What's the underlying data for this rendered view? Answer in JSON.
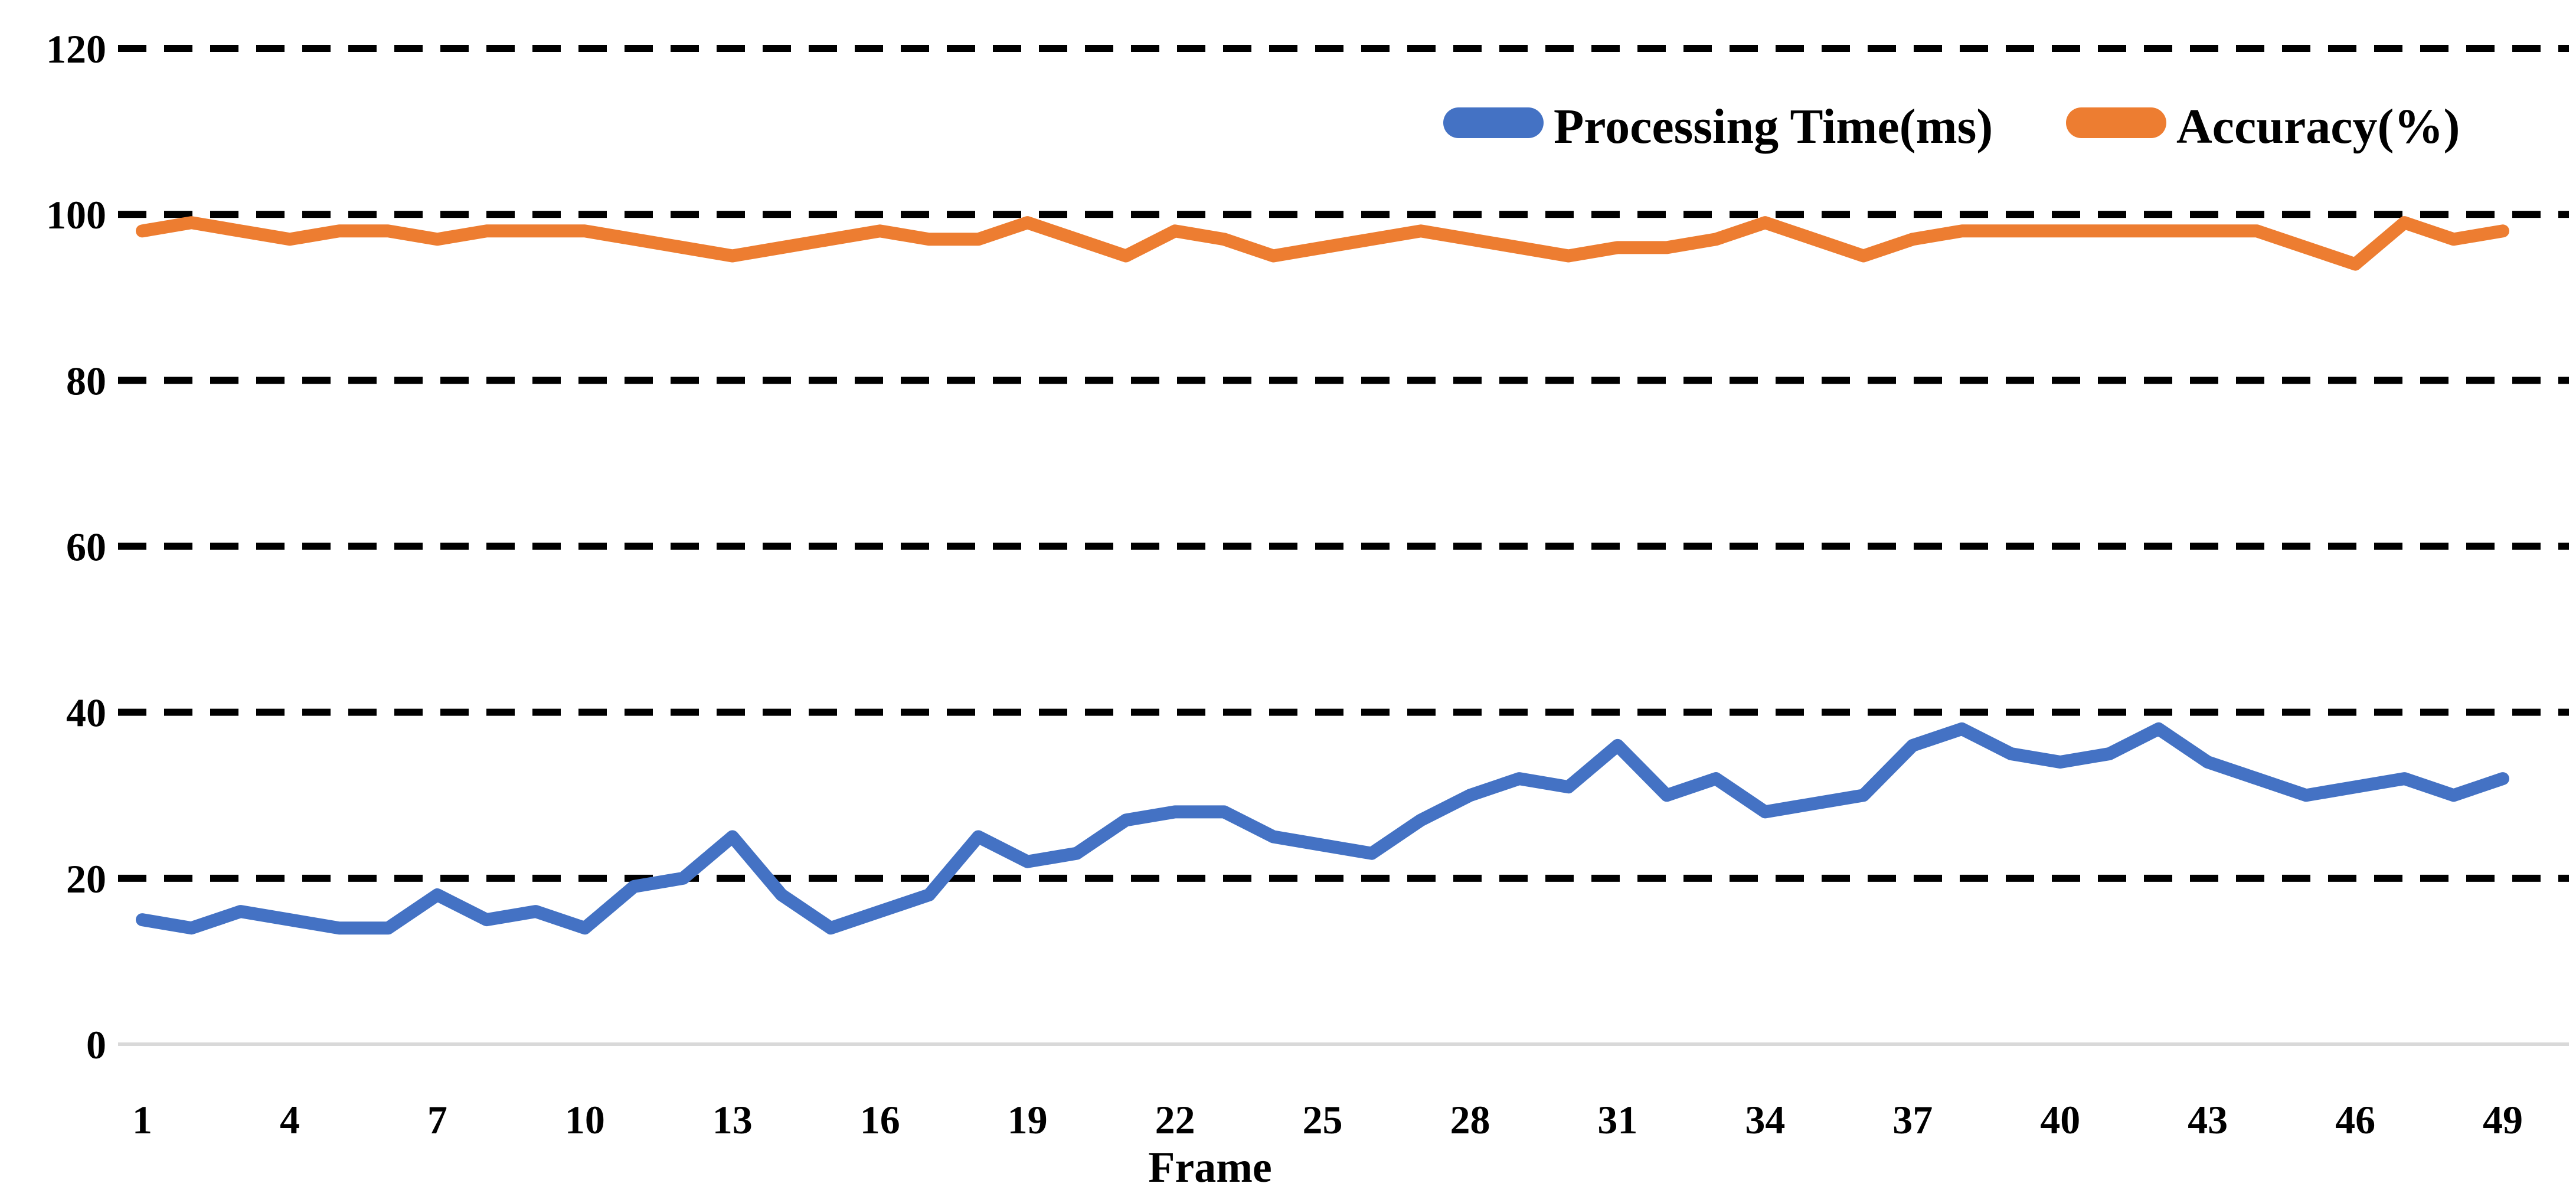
{
  "chart_data": {
    "type": "line",
    "title": "",
    "xlabel": "Frame",
    "ylabel": "",
    "x": [
      1,
      2,
      3,
      4,
      5,
      6,
      7,
      8,
      9,
      10,
      11,
      12,
      13,
      14,
      15,
      16,
      17,
      18,
      19,
      20,
      21,
      22,
      23,
      24,
      25,
      26,
      27,
      28,
      29,
      30,
      31,
      32,
      33,
      34,
      35,
      36,
      37,
      38,
      39,
      40,
      41,
      42,
      43,
      44,
      45,
      46,
      47,
      48,
      49
    ],
    "series": [
      {
        "name": "Processing Time(ms)",
        "color": "#4472C4",
        "values": [
          15,
          14,
          16,
          15,
          14,
          14,
          18,
          15,
          16,
          14,
          19,
          20,
          25,
          18,
          14,
          16,
          18,
          25,
          22,
          23,
          27,
          28,
          28,
          25,
          24,
          23,
          27,
          30,
          32,
          31,
          36,
          30,
          32,
          28,
          29,
          30,
          36,
          38,
          35,
          34,
          35,
          38,
          34,
          32,
          30,
          31,
          32,
          30,
          32
        ]
      },
      {
        "name": "Accuracy(%)",
        "color": "#ED7D31",
        "values": [
          98,
          99,
          98,
          97,
          98,
          98,
          97,
          98,
          98,
          98,
          97,
          96,
          95,
          96,
          97,
          98,
          97,
          97,
          99,
          97,
          95,
          98,
          97,
          95,
          96,
          97,
          98,
          97,
          96,
          95,
          96,
          96,
          97,
          99,
          97,
          95,
          97,
          98,
          98,
          98,
          98,
          98,
          98,
          98,
          96,
          94,
          99,
          97,
          98
        ]
      }
    ],
    "ylim": [
      0,
      120
    ],
    "ytick_step": 20,
    "ytick_labels": [
      "0",
      "20",
      "40",
      "60",
      "80",
      "100",
      "120"
    ],
    "xtick_step": 3,
    "xtick_labels": [
      "1",
      "4",
      "7",
      "10",
      "13",
      "16",
      "19",
      "22",
      "25",
      "28",
      "31",
      "34",
      "37",
      "40",
      "43",
      "46",
      "49"
    ],
    "grid": "horizontal-dashed",
    "gridline_color": "#000000",
    "axis_line_color": "#D9D9D9",
    "legend_position": "top-inside-right",
    "background_color": "#FFFFFF"
  }
}
